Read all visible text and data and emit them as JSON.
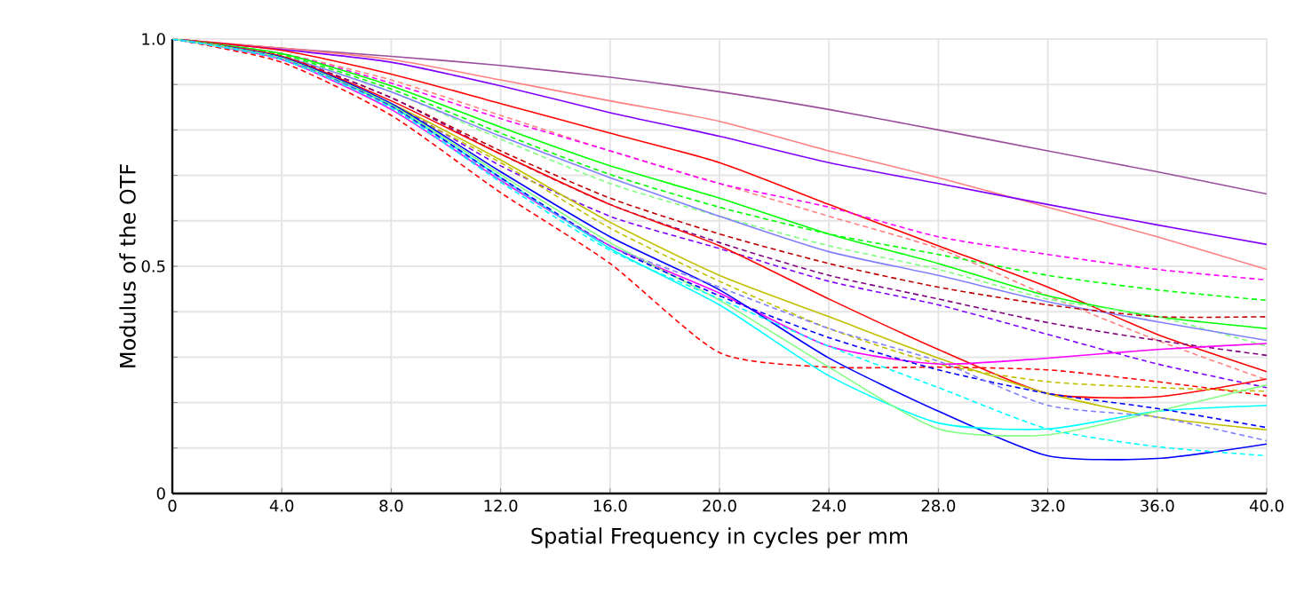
{
  "chart_data": {
    "type": "line",
    "xlabel": "Spatial Frequency in cycles per mm",
    "ylabel": "Modulus of the OTF",
    "x": [
      0,
      4,
      8,
      12,
      16,
      20,
      24,
      28,
      32,
      36,
      40
    ],
    "xlim": [
      0,
      40
    ],
    "ylim": [
      0,
      1
    ],
    "xticks": [
      0,
      {
        "value": 4,
        "label": "4.0"
      },
      {
        "value": 8,
        "label": "8.0"
      },
      {
        "value": 12,
        "label": "12.0"
      },
      {
        "value": 16,
        "label": "16.0"
      },
      {
        "value": 20,
        "label": "20.0"
      },
      {
        "value": 24,
        "label": "24.0"
      },
      {
        "value": 28,
        "label": "28.0"
      },
      {
        "value": 32,
        "label": "32.0"
      },
      {
        "value": 36,
        "label": "36.0"
      },
      {
        "value": 40,
        "label": "40.0"
      }
    ],
    "yticks": [
      0,
      {
        "value": 0.1,
        "label": null
      },
      {
        "value": 0.2,
        "label": null
      },
      {
        "value": 0.3,
        "label": null
      },
      {
        "value": 0.4,
        "label": null
      },
      {
        "value": 0.5,
        "label": "0.5"
      },
      {
        "value": 0.6,
        "label": null
      },
      {
        "value": 0.7,
        "label": null
      },
      {
        "value": 0.8,
        "label": null
      },
      {
        "value": 0.9,
        "label": null
      },
      {
        "value": 1,
        "label": "1.0"
      }
    ],
    "grid": true,
    "marker": "none",
    "line_style": "solid",
    "series": [
      {
        "color": "#9b4f9b",
        "values": [
          1,
          0.98,
          0.962,
          0.942,
          0.916,
          0.884,
          0.845,
          0.8,
          0.754,
          0.708,
          0.659
        ]
      },
      {
        "color": "#ff8080",
        "values": [
          1,
          0.98,
          0.955,
          0.91,
          0.864,
          0.819,
          0.754,
          0.695,
          0.63,
          0.565,
          0.493
        ]
      },
      {
        "color": "#8000ff",
        "values": [
          1,
          0.977,
          0.949,
          0.897,
          0.838,
          0.786,
          0.728,
          0.682,
          0.636,
          0.591,
          0.548
        ]
      },
      {
        "color": "#ff0000",
        "values": [
          1,
          0.975,
          0.923,
          0.858,
          0.793,
          0.728,
          0.636,
          0.545,
          0.454,
          0.35,
          0.268
        ]
      },
      {
        "color": "#ff8080",
        "line_style": "dashed",
        "values": [
          1,
          0.968,
          0.91,
          0.832,
          0.754,
          0.682,
          0.61,
          0.539,
          0.435,
          0.337,
          0.25
        ]
      },
      {
        "color": "#ff00ff",
        "line_style": "dashed",
        "values": [
          1,
          0.968,
          0.903,
          0.825,
          0.754,
          0.682,
          0.63,
          0.565,
          0.526,
          0.493,
          0.47
        ]
      },
      {
        "color": "#00ff00",
        "values": [
          1,
          0.968,
          0.897,
          0.806,
          0.721,
          0.65,
          0.571,
          0.506,
          0.435,
          0.389,
          0.363
        ]
      },
      {
        "color": "#00ff00",
        "line_style": "dashed",
        "values": [
          1,
          0.965,
          0.89,
          0.793,
          0.702,
          0.63,
          0.571,
          0.526,
          0.48,
          0.448,
          0.425
        ]
      },
      {
        "color": "#80ff80",
        "line_style": "dashed",
        "values": [
          1,
          0.963,
          0.884,
          0.78,
          0.682,
          0.61,
          0.545,
          0.493,
          0.428,
          0.389,
          0.324
        ]
      },
      {
        "color": "#8080ff",
        "values": [
          1,
          0.962,
          0.884,
          0.786,
          0.695,
          0.61,
          0.532,
          0.48,
          0.422,
          0.378,
          0.337
        ]
      },
      {
        "color": "#c00000",
        "line_style": "dashed",
        "values": [
          1,
          0.962,
          0.871,
          0.754,
          0.65,
          0.571,
          0.506,
          0.454,
          0.415,
          0.389,
          0.389
        ]
      },
      {
        "color": "#800080",
        "line_style": "dashed",
        "values": [
          1,
          0.96,
          0.871,
          0.747,
          0.636,
          0.552,
          0.48,
          0.428,
          0.376,
          0.337,
          0.304
        ]
      },
      {
        "color": "#8000ff",
        "line_style": "dashed",
        "values": [
          1,
          0.955,
          0.858,
          0.721,
          0.61,
          0.539,
          0.467,
          0.415,
          0.35,
          0.285,
          0.233
        ]
      },
      {
        "color": "#ff0000",
        "values": [
          1,
          0.962,
          0.864,
          0.747,
          0.636,
          0.545,
          0.428,
          0.317,
          0.22,
          0.213,
          0.252
        ]
      },
      {
        "color": "#c0c000",
        "values": [
          1,
          0.96,
          0.858,
          0.734,
          0.597,
          0.48,
          0.389,
          0.298,
          0.22,
          0.168,
          0.14
        ]
      },
      {
        "color": "#c0c000",
        "line_style": "dashed",
        "values": [
          1,
          0.958,
          0.852,
          0.728,
          0.584,
          0.467,
          0.363,
          0.285,
          0.246,
          0.233,
          0.225
        ]
      },
      {
        "color": "#ff0000",
        "line_style": "dashed",
        "values": [
          1,
          0.949,
          0.832,
          0.662,
          0.506,
          0.31,
          0.278,
          0.278,
          0.272,
          0.246,
          0.215
        ]
      },
      {
        "color": "#ff00ff",
        "values": [
          1,
          0.955,
          0.845,
          0.689,
          0.545,
          0.441,
          0.324,
          0.285,
          0.298,
          0.317,
          0.33
        ]
      },
      {
        "color": "#0000ff",
        "values": [
          1,
          0.96,
          0.858,
          0.708,
          0.565,
          0.448,
          0.298,
          0.181,
          0.083,
          0.077,
          0.109
        ]
      },
      {
        "color": "#00ffff",
        "values": [
          1,
          0.958,
          0.852,
          0.695,
          0.539,
          0.415,
          0.259,
          0.155,
          0.142,
          0.181,
          0.194
        ]
      },
      {
        "color": "#80ff80",
        "values": [
          1,
          0.958,
          0.855,
          0.702,
          0.552,
          0.425,
          0.278,
          0.142,
          0.129,
          0.181,
          0.239
        ]
      },
      {
        "color": "#0000ff",
        "line_style": "dashed",
        "values": [
          1,
          0.956,
          0.852,
          0.695,
          0.545,
          0.435,
          0.343,
          0.272,
          0.22,
          0.187,
          0.145
        ]
      },
      {
        "color": "#8080ff",
        "line_style": "dashed",
        "values": [
          1,
          0.956,
          0.85,
          0.69,
          0.545,
          0.454,
          0.363,
          0.291,
          0.194,
          0.168,
          0.116
        ]
      },
      {
        "color": "#00ffff",
        "line_style": "dashed",
        "values": [
          1,
          0.955,
          0.848,
          0.685,
          0.535,
          0.428,
          0.324,
          0.233,
          0.142,
          0.103,
          0.083
        ]
      }
    ]
  }
}
